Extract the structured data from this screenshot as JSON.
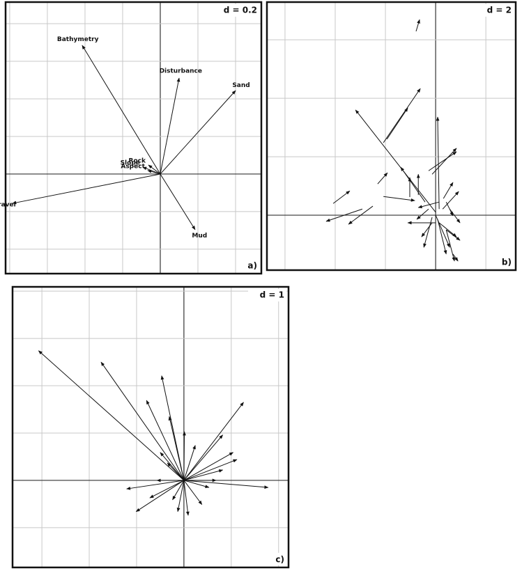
{
  "chart_data": [
    {
      "type": "arrows",
      "label": "d = 0.2",
      "panel": "a)",
      "xlim": [
        -0.822,
        0.537
      ],
      "ylim": [
        -0.53,
        0.915
      ],
      "xticks": [
        -0.8,
        -0.6,
        -0.4,
        -0.2,
        0,
        0.2,
        0.4
      ],
      "yticks": [
        -0.4,
        -0.2,
        0,
        0.2,
        0.4,
        0.6,
        0.8
      ],
      "names": [
        "Bathymetry",
        "Disturbance",
        "Sand",
        "Rock",
        "Slope",
        "Aspect",
        "Gravel",
        "Mud"
      ],
      "x": [
        -0.415,
        0.1,
        0.4,
        -0.063,
        -0.093,
        -0.067,
        -0.785,
        0.185
      ],
      "y": [
        0.685,
        0.511,
        0.444,
        0.048,
        0.037,
        0.019,
        -0.156,
        -0.296
      ]
    },
    {
      "type": "arrows",
      "label": "d = 2",
      "panel": "b)",
      "xlim": [
        -6.72,
        3.19
      ],
      "ylim": [
        -1.88,
        7.29
      ],
      "xticks": [
        -6,
        -4,
        -2,
        0,
        2
      ],
      "yticks": [
        0,
        2,
        4,
        6
      ],
      "x0": [
        -0.78,
        -2.08,
        0,
        -1.94,
        0.14,
        -0.14,
        -0.28,
        -0.42,
        -4.08,
        -2.31,
        -1.03,
        -0.69,
        -2.92,
        -2.5,
        -2.08,
        0.42,
        0,
        0.14,
        -0.14,
        0.28,
        0.14,
        0.42,
        0.56,
        -0.28,
        0.69,
        0.08,
        -0.14,
        0.31,
        0,
        0.42
      ],
      "y0": [
        6.29,
        2.48,
        0.1,
        2.6,
        0.21,
        1.4,
        1.52,
        0.45,
        0.4,
        1.07,
        0.62,
        0.69,
        0.21,
        0.31,
        0.64,
        0.45,
        0,
        -0.26,
        -0.26,
        0.21,
        0.45,
        -0.5,
        0.21,
        0.21,
        -1.33,
        -0.14,
        -0.07,
        0.57,
        -0.26,
        -0.5
      ],
      "x": [
        -0.64,
        -0.61,
        -3.19,
        -1.11,
        0.08,
        0.83,
        0.83,
        -1.39,
        -3.42,
        -1.92,
        -1.03,
        -0.69,
        -4.36,
        -3.47,
        -0.83,
        0.69,
        0.56,
        0.83,
        -0.56,
        0.92,
        -0.69,
        0.97,
        0.97,
        -0.75,
        0.89,
        0.42,
        -0.47,
        0.69,
        -1.11,
        0.75
      ],
      "y": [
        6.69,
        4.33,
        3.6,
        3.67,
        3.36,
        2.29,
        2.17,
        1.64,
        0.83,
        1.45,
        1.29,
        1.4,
        -0.21,
        -0.31,
        0.5,
        -0.02,
        -1.1,
        -0.74,
        -0.74,
        0.81,
        0.26,
        -0.86,
        -0.26,
        -0.14,
        -1.57,
        -1.33,
        -1.1,
        1.12,
        -0.26,
        -1.57
      ]
    },
    {
      "type": "arrows",
      "label": "d = 1",
      "panel": "c)",
      "xlim": [
        -3.62,
        2.21
      ],
      "ylim": [
        -1.84,
        4.09
      ],
      "xticks": [
        -3,
        -2,
        -1,
        0,
        1,
        2
      ],
      "yticks": [
        -1,
        0,
        1,
        2,
        3,
        4
      ],
      "x": [
        -3.07,
        -1.75,
        -0.47,
        -0.79,
        1.26,
        -0.31,
        0.01,
        0.82,
        1.04,
        1.78,
        -1.21,
        -1.01,
        -0.24,
        0.38,
        0.53,
        -0.5,
        -0.35,
        0.24,
        0.82,
        -0.13,
        0.09,
        -0.57,
        0.68,
        -0.72,
        1.12
      ],
      "y": [
        2.74,
        2.5,
        2.21,
        1.69,
        1.65,
        1.35,
        1.03,
        0.96,
        0.59,
        -0.15,
        -0.18,
        -0.66,
        -0.41,
        -0.51,
        -0.15,
        0.59,
        0.37,
        0.74,
        0.22,
        -0.66,
        -0.74,
        0,
        0,
        -0.37,
        0.44
      ]
    }
  ]
}
